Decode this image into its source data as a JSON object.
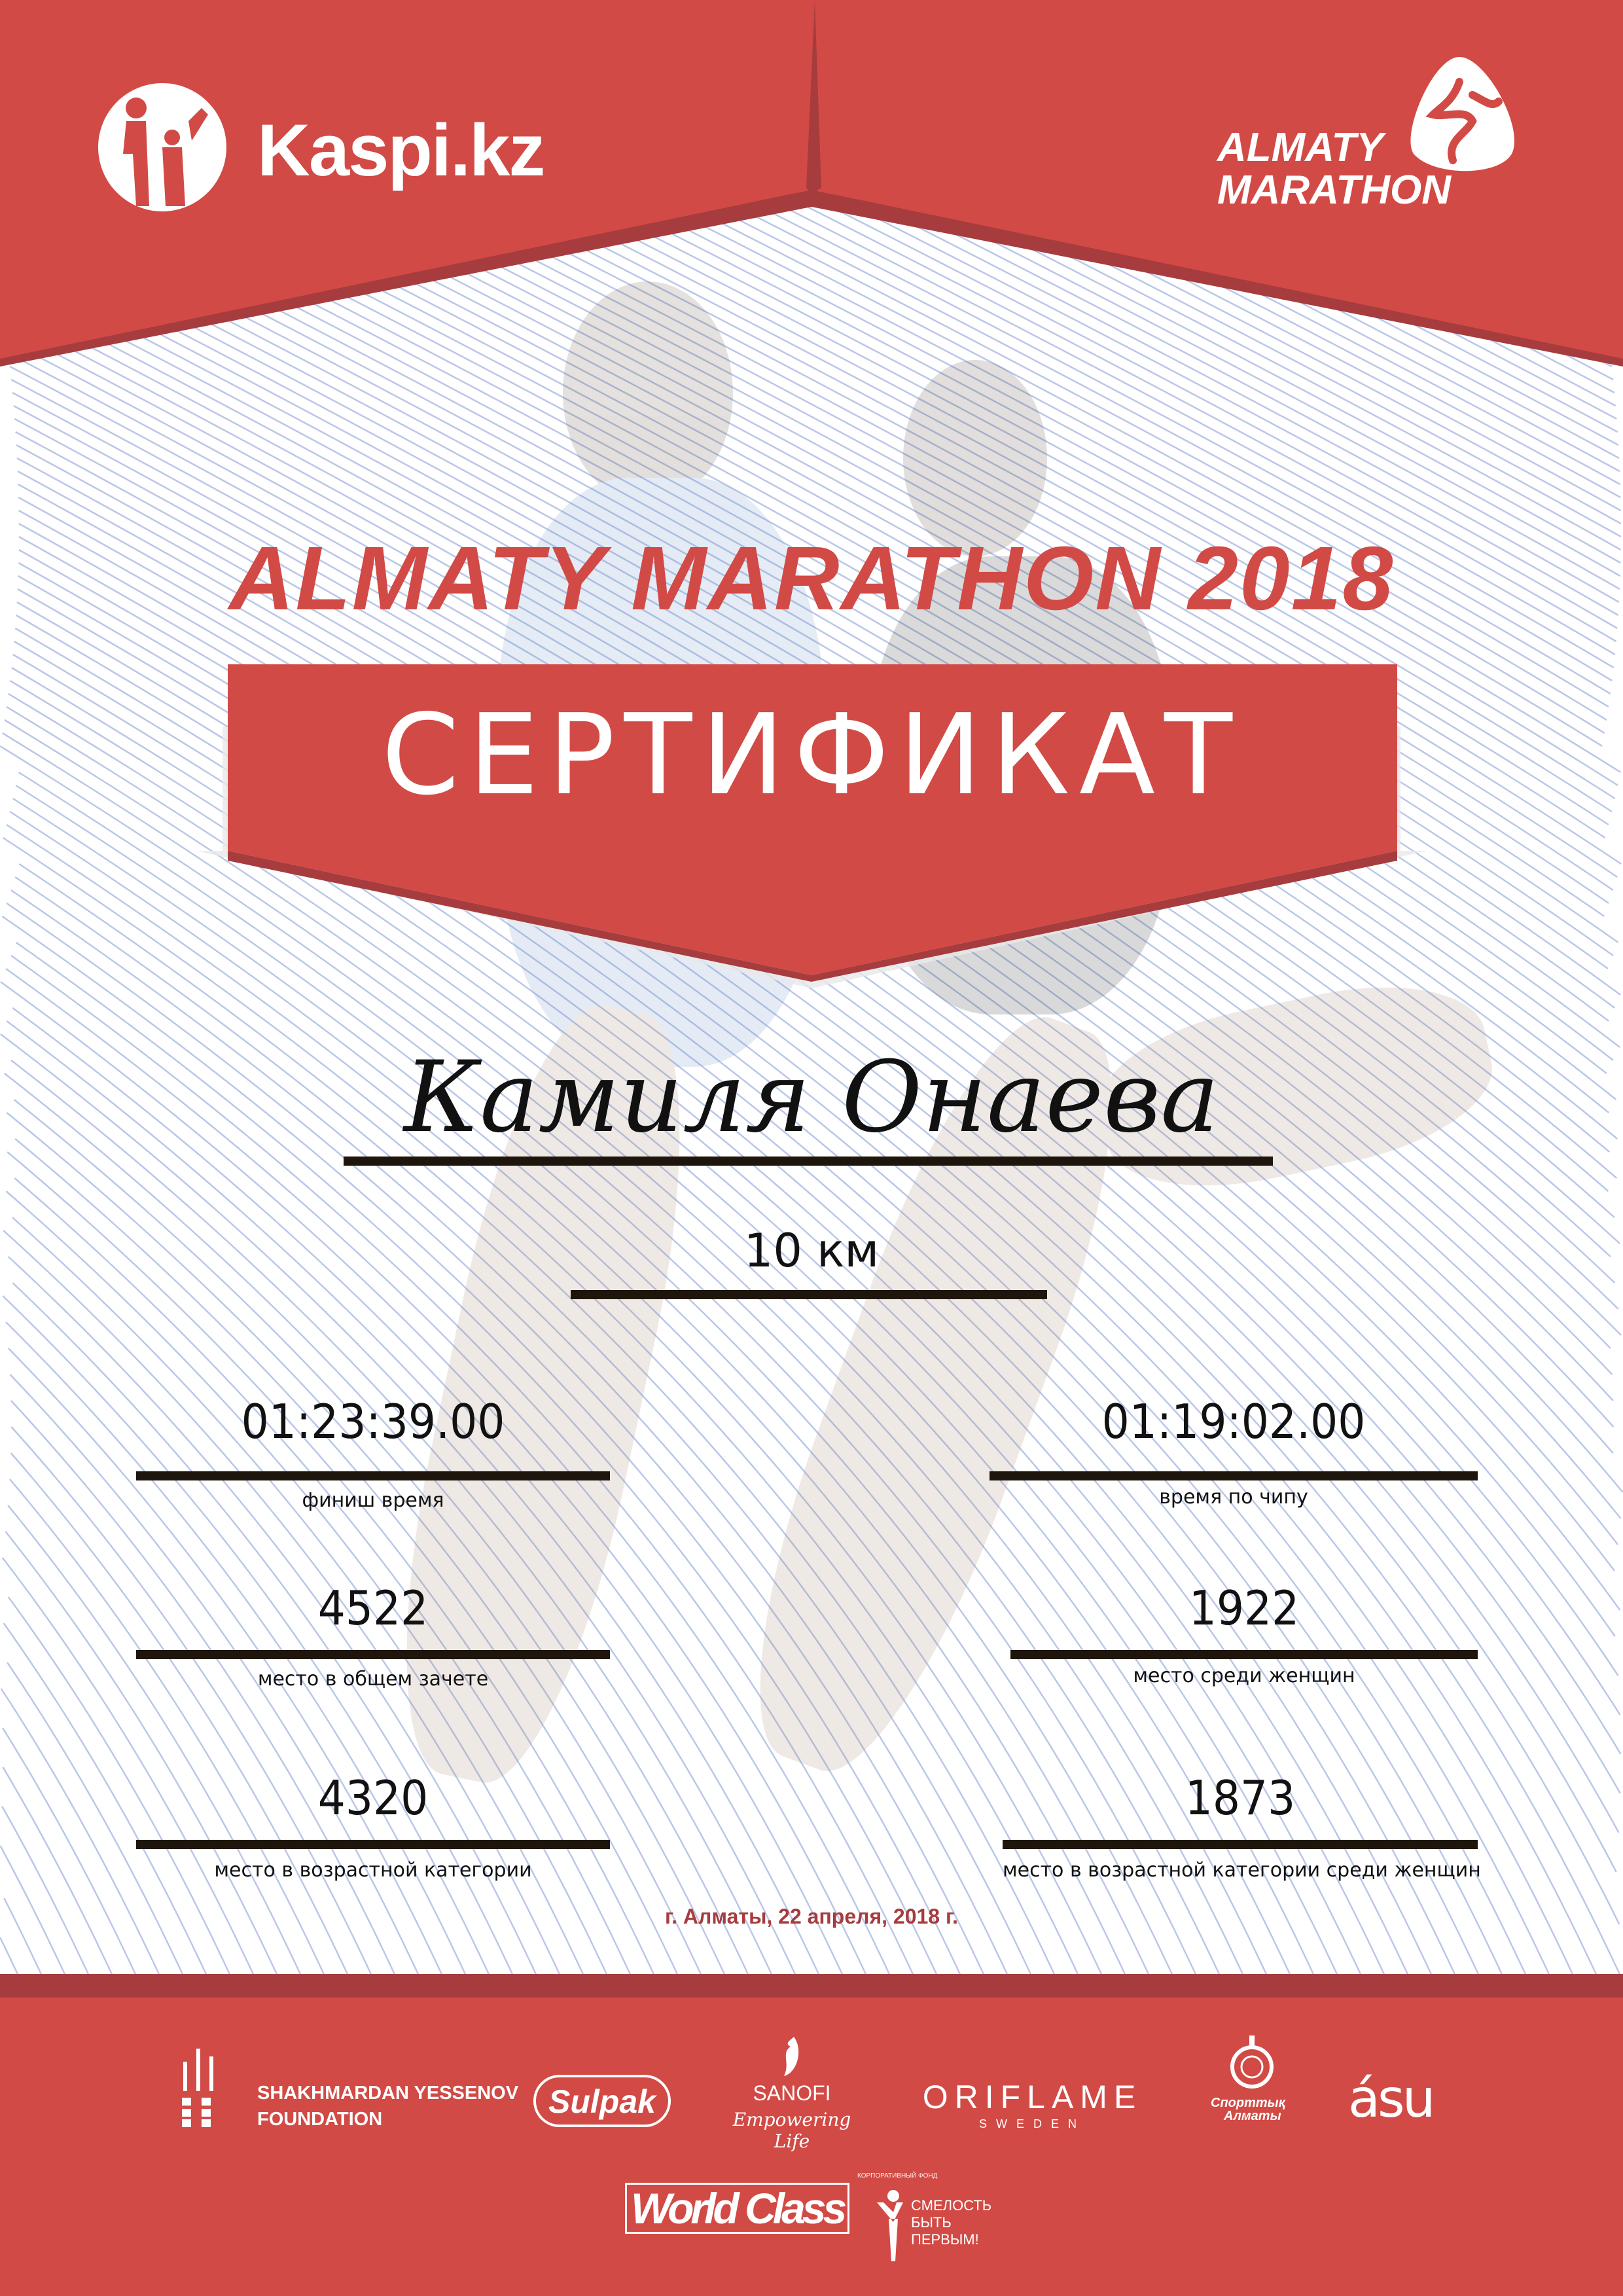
{
  "colors": {
    "primary_red": "#d24a45",
    "dark_red": "#a63c3e",
    "date_red": "#a63c3e",
    "line_blue": "#b9c7e8",
    "rule": "#1e160c"
  },
  "header": {
    "left_logo": {
      "text": "Kaspi.kz",
      "icon": "kaspi-family-icon"
    },
    "right_logo": {
      "line1": "ALMATY",
      "line2": "MARATHON",
      "icon": "runner-icon"
    }
  },
  "event_title": "ALMATY MARATHON 2018",
  "certificate_label": "СЕРТИФИКАТ",
  "participant_name": "Камиля Онаева",
  "distance": "10 км",
  "results": {
    "left": [
      {
        "value": "01:23:39.00",
        "label": "финиш время"
      },
      {
        "value": "4522",
        "label": "место в общем зачете"
      },
      {
        "value": "4320",
        "label": "место в возрастной категории"
      }
    ],
    "right": [
      {
        "value": "01:19:02.00",
        "label": "время по чипу"
      },
      {
        "value": "1922",
        "label": "место среди женщин"
      },
      {
        "value": "1873",
        "label": "место в возрастной категории среди женщин"
      }
    ]
  },
  "date_line": "г. Алматы, 22 апреля, 2018 г.",
  "sponsors": {
    "row1": [
      {
        "name": "SHAKHMARDAN YESSENOV",
        "sub": "FOUNDATION"
      },
      {
        "name": "Sulpak"
      },
      {
        "name": "SANOFI",
        "sub": "Empowering Life"
      },
      {
        "name": "ORIFLAME",
        "sub": "SWEDEN"
      },
      {
        "name": "Спорттық",
        "sub": "Алматы"
      },
      {
        "name": "ásu"
      }
    ],
    "row2": [
      {
        "name": "World Class"
      },
      {
        "name": "СМЕЛОСТЬ",
        "sub": "БЫТЬ",
        "sub2": "ПЕРВЫМ!",
        "arc": "КОРПОРАТИВНЫЙ ФОНД"
      }
    ]
  }
}
